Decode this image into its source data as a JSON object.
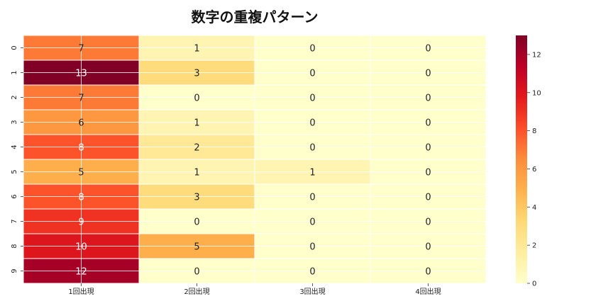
{
  "chart_data": {
    "type": "heatmap",
    "title": "数字の重複パターン",
    "columns": [
      "1回出現",
      "2回出現",
      "3回出現",
      "4回出現"
    ],
    "rows": [
      "0",
      "1",
      "2",
      "3",
      "4",
      "5",
      "6",
      "7",
      "8",
      "9"
    ],
    "values": [
      [
        7,
        1,
        0,
        0
      ],
      [
        13,
        3,
        0,
        0
      ],
      [
        7,
        0,
        0,
        0
      ],
      [
        6,
        1,
        0,
        0
      ],
      [
        8,
        2,
        0,
        0
      ],
      [
        5,
        1,
        1,
        0
      ],
      [
        8,
        3,
        0,
        0
      ],
      [
        9,
        0,
        0,
        0
      ],
      [
        10,
        5,
        0,
        0
      ],
      [
        12,
        0,
        0,
        0
      ]
    ],
    "colorbar": {
      "min": 0,
      "max": 13,
      "ticks": [
        0,
        2,
        4,
        6,
        8,
        10,
        12
      ]
    },
    "colormap": "YlOrRd",
    "grid": true,
    "annotations": true
  }
}
